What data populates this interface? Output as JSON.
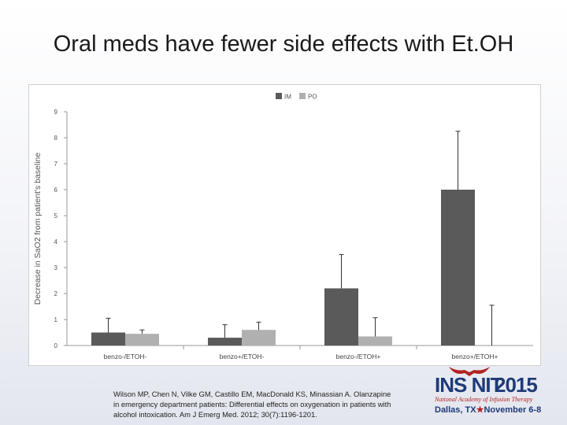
{
  "slide": {
    "title": "Oral meds have fewer side effects with Et.OH"
  },
  "citation": {
    "line1": "Wilson MP, Chen N, Vilke GM, Castillo EM, MacDonald KS, Minassian A. Olanzapine",
    "line2": "in emergency department patients: Differential effects on oxygenation in patients with",
    "line3": "alcohol intoxication. Am J Emerg Med. 2012; 30(7):1196-1201."
  },
  "logo": {
    "ins": "INS N",
    "it": "IT",
    "year": "2015",
    "org": "National Academy of Infusion Therapy",
    "location": "Dallas, TX",
    "dates": "November 6-8",
    "colors": {
      "blue": "#1e3a78",
      "red": "#b22222"
    },
    "icon": "bull-horns-icon"
  },
  "chart_data": {
    "type": "bar",
    "title": "",
    "xlabel": "",
    "ylabel": "Decrease in SaO2 from patient's baseline",
    "ylim": [
      0,
      9
    ],
    "yticks": [
      0,
      1,
      2,
      3,
      4,
      5,
      6,
      7,
      8,
      9
    ],
    "grid": false,
    "legend_position": "top-center",
    "categories": [
      "benzo-/ETOH-",
      "benzo+/ETOH-",
      "benzo-/ETOH+",
      "benzo+/ETOH+"
    ],
    "series": [
      {
        "name": "IM",
        "color": "#5a5a5a",
        "values": [
          0.5,
          0.3,
          2.2,
          6.0
        ],
        "errors": [
          0.55,
          0.5,
          1.3,
          2.25
        ]
      },
      {
        "name": "PO",
        "color": "#b0b0b0",
        "values": [
          0.45,
          0.6,
          0.35,
          0.0
        ],
        "errors": [
          0.15,
          0.3,
          0.72,
          1.55
        ]
      }
    ]
  }
}
